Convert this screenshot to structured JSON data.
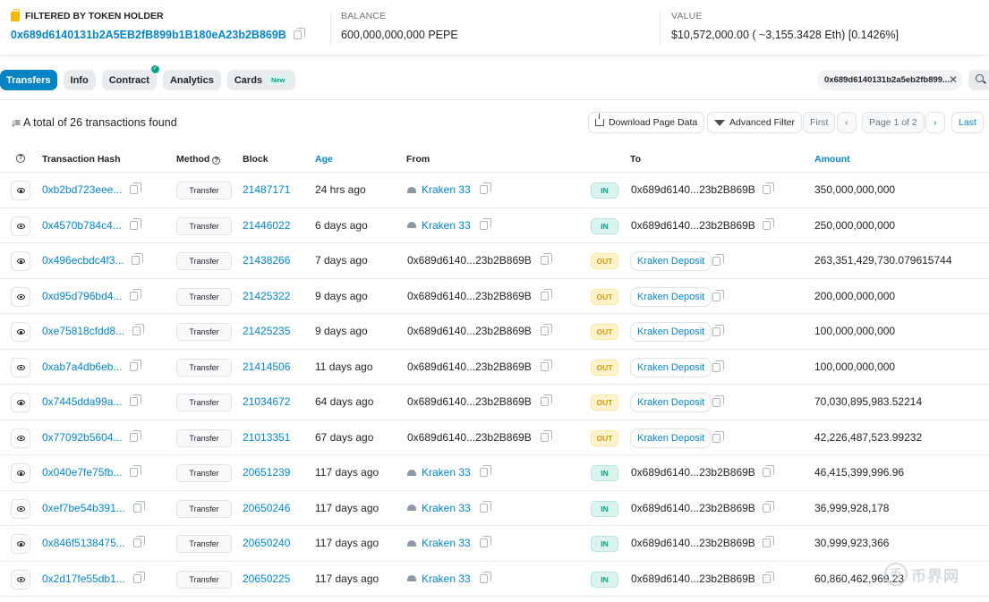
{
  "summary": {
    "filter_label": "FILTERED BY TOKEN HOLDER",
    "holder_address": "0x689d6140131b2A5EB2fB899b1B180eA23b2B869B",
    "balance_label": "BALANCE",
    "balance_value": "600,000,000,000 PEPE",
    "value_label": "VALUE",
    "value_value": "$10,572,000.00 ( ~3,155.3428 Eth) [0.1426%]"
  },
  "tabs": [
    {
      "label": "Transfers",
      "active": true
    },
    {
      "label": "Info"
    },
    {
      "label": "Contract",
      "badge": "✓"
    },
    {
      "label": "Analytics"
    },
    {
      "label": "Cards",
      "badge_text": "New"
    }
  ],
  "address_filter": "0x689d6140131b2a5eb2fb899...",
  "total_text": "A total of 26 transactions found",
  "toolbar": {
    "download": "Download Page Data",
    "advanced_filter": "Advanced Filter",
    "first": "First",
    "prev": "‹",
    "page": "Page 1 of 2",
    "next": "›",
    "last": "Last"
  },
  "columns": {
    "hash": "Transaction Hash",
    "method": "Method",
    "block": "Block",
    "age": "Age",
    "from": "From",
    "to": "To",
    "amount": "Amount"
  },
  "rows": [
    {
      "hash": "0xb2bd723eee...",
      "method": "Transfer",
      "block": "21487171",
      "age": "24 hrs ago",
      "from": "Kraken 33",
      "dir": "IN",
      "to": "0x689d6140...23b2B869B",
      "amount": "350,000,000,000"
    },
    {
      "hash": "0x4570b784c4...",
      "method": "Transfer",
      "block": "21446022",
      "age": "6 days ago",
      "from": "Kraken 33",
      "dir": "IN",
      "to": "0x689d6140...23b2B869B",
      "amount": "250,000,000,000"
    },
    {
      "hash": "0x496ecbdc4f3...",
      "method": "Transfer",
      "block": "21438266",
      "age": "7 days ago",
      "from": "0x689d6140...23b2B869B",
      "dir": "OUT",
      "to": "Kraken Deposit",
      "amount": "263,351,429,730.079615744"
    },
    {
      "hash": "0xd95d796bd4...",
      "method": "Transfer",
      "block": "21425322",
      "age": "9 days ago",
      "from": "0x689d6140...23b2B869B",
      "dir": "OUT",
      "to": "Kraken Deposit",
      "amount": "200,000,000,000"
    },
    {
      "hash": "0xe75818cfdd8...",
      "method": "Transfer",
      "block": "21425235",
      "age": "9 days ago",
      "from": "0x689d6140...23b2B869B",
      "dir": "OUT",
      "to": "Kraken Deposit",
      "amount": "100,000,000,000"
    },
    {
      "hash": "0xab7a4db6eb...",
      "method": "Transfer",
      "block": "21414506",
      "age": "11 days ago",
      "from": "0x689d6140...23b2B869B",
      "dir": "OUT",
      "to": "Kraken Deposit",
      "amount": "100,000,000,000"
    },
    {
      "hash": "0x7445dda99a...",
      "method": "Transfer",
      "block": "21034672",
      "age": "64 days ago",
      "from": "0x689d6140...23b2B869B",
      "dir": "OUT",
      "to": "Kraken Deposit",
      "amount": "70,030,895,983.52214"
    },
    {
      "hash": "0x77092b5604...",
      "method": "Transfer",
      "block": "21013351",
      "age": "67 days ago",
      "from": "0x689d6140...23b2B869B",
      "dir": "OUT",
      "to": "Kraken Deposit",
      "amount": "42,226,487,523.99232"
    },
    {
      "hash": "0x040e7fe75fb...",
      "method": "Transfer",
      "block": "20651239",
      "age": "117 days ago",
      "from": "Kraken 33",
      "dir": "IN",
      "to": "0x689d6140...23b2B869B",
      "amount": "46,415,399,996.96"
    },
    {
      "hash": "0xef7be54b391...",
      "method": "Transfer",
      "block": "20650246",
      "age": "117 days ago",
      "from": "Kraken 33",
      "dir": "IN",
      "to": "0x689d6140...23b2B869B",
      "amount": "36,999,928,178"
    },
    {
      "hash": "0x846f5138475...",
      "method": "Transfer",
      "block": "20650240",
      "age": "117 days ago",
      "from": "Kraken 33",
      "dir": "IN",
      "to": "0x689d6140...23b2B869B",
      "amount": "30,999,923,366"
    },
    {
      "hash": "0x2d17fe55db1...",
      "method": "Transfer",
      "block": "20650225",
      "age": "117 days ago",
      "from": "Kraken 33",
      "dir": "IN",
      "to": "0x689d6140...23b2B869B",
      "amount": "60,860,462,969.23"
    }
  ],
  "watermark": {
    "symbol": "币",
    "text": "币界网"
  },
  "colors": {
    "link": "#0784c3",
    "in": "#00a186",
    "out": "#cc9a06",
    "tab_active": "#0784c3"
  }
}
